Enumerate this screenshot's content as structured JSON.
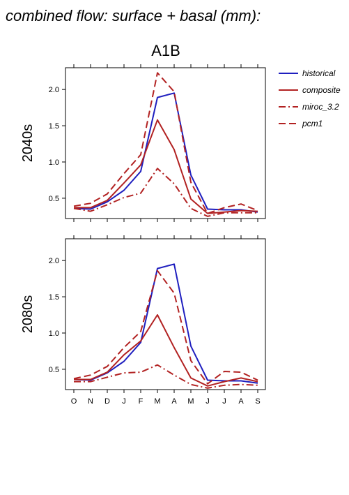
{
  "heading": "combined flow: surface + basal (mm):",
  "chart_data": {
    "type": "line",
    "title": "A1B",
    "categories": [
      "O",
      "N",
      "D",
      "J",
      "F",
      "M",
      "A",
      "M",
      "J",
      "J",
      "A",
      "S"
    ],
    "yticks": [
      "0.5",
      "1.0",
      "1.5",
      "2.0"
    ],
    "ylim": [
      0.22,
      2.3
    ],
    "grid": false,
    "legend_position": "top-right",
    "legend": [
      {
        "name": "historical",
        "color": "#1f1fbf",
        "dash": "solid"
      },
      {
        "name": "composite",
        "color": "#b22222",
        "dash": "solid"
      },
      {
        "name": "miroc_3.2",
        "color": "#b22222",
        "dash": "dashdot"
      },
      {
        "name": "pcm1",
        "color": "#b22222",
        "dash": "dashed"
      }
    ],
    "panels": [
      {
        "label": "2040s",
        "series": [
          {
            "name": "historical",
            "values": [
              0.36,
              0.35,
              0.45,
              0.61,
              0.87,
              1.89,
              1.95,
              0.82,
              0.35,
              0.34,
              0.34,
              0.31
            ]
          },
          {
            "name": "composite",
            "values": [
              0.37,
              0.37,
              0.47,
              0.71,
              0.96,
              1.58,
              1.17,
              0.49,
              0.29,
              0.31,
              0.33,
              0.32
            ]
          },
          {
            "name": "miroc_3.2",
            "values": [
              0.36,
              0.32,
              0.41,
              0.51,
              0.57,
              0.91,
              0.7,
              0.36,
              0.25,
              0.3,
              0.3,
              0.3
            ]
          },
          {
            "name": "pcm1",
            "values": [
              0.39,
              0.43,
              0.56,
              0.84,
              1.1,
              2.23,
              1.97,
              0.72,
              0.29,
              0.37,
              0.42,
              0.33
            ]
          }
        ]
      },
      {
        "label": "2080s",
        "series": [
          {
            "name": "historical",
            "values": [
              0.36,
              0.35,
              0.45,
              0.61,
              0.87,
              1.89,
              1.95,
              0.82,
              0.35,
              0.34,
              0.34,
              0.31
            ]
          },
          {
            "name": "composite",
            "values": [
              0.36,
              0.36,
              0.46,
              0.7,
              0.89,
              1.25,
              0.8,
              0.38,
              0.27,
              0.33,
              0.38,
              0.33
            ]
          },
          {
            "name": "miroc_3.2",
            "values": [
              0.33,
              0.33,
              0.39,
              0.45,
              0.46,
              0.56,
              0.42,
              0.29,
              0.24,
              0.28,
              0.29,
              0.28
            ]
          },
          {
            "name": "pcm1",
            "values": [
              0.37,
              0.42,
              0.54,
              0.8,
              1.02,
              1.86,
              1.55,
              0.62,
              0.3,
              0.47,
              0.46,
              0.35
            ]
          }
        ]
      }
    ]
  }
}
